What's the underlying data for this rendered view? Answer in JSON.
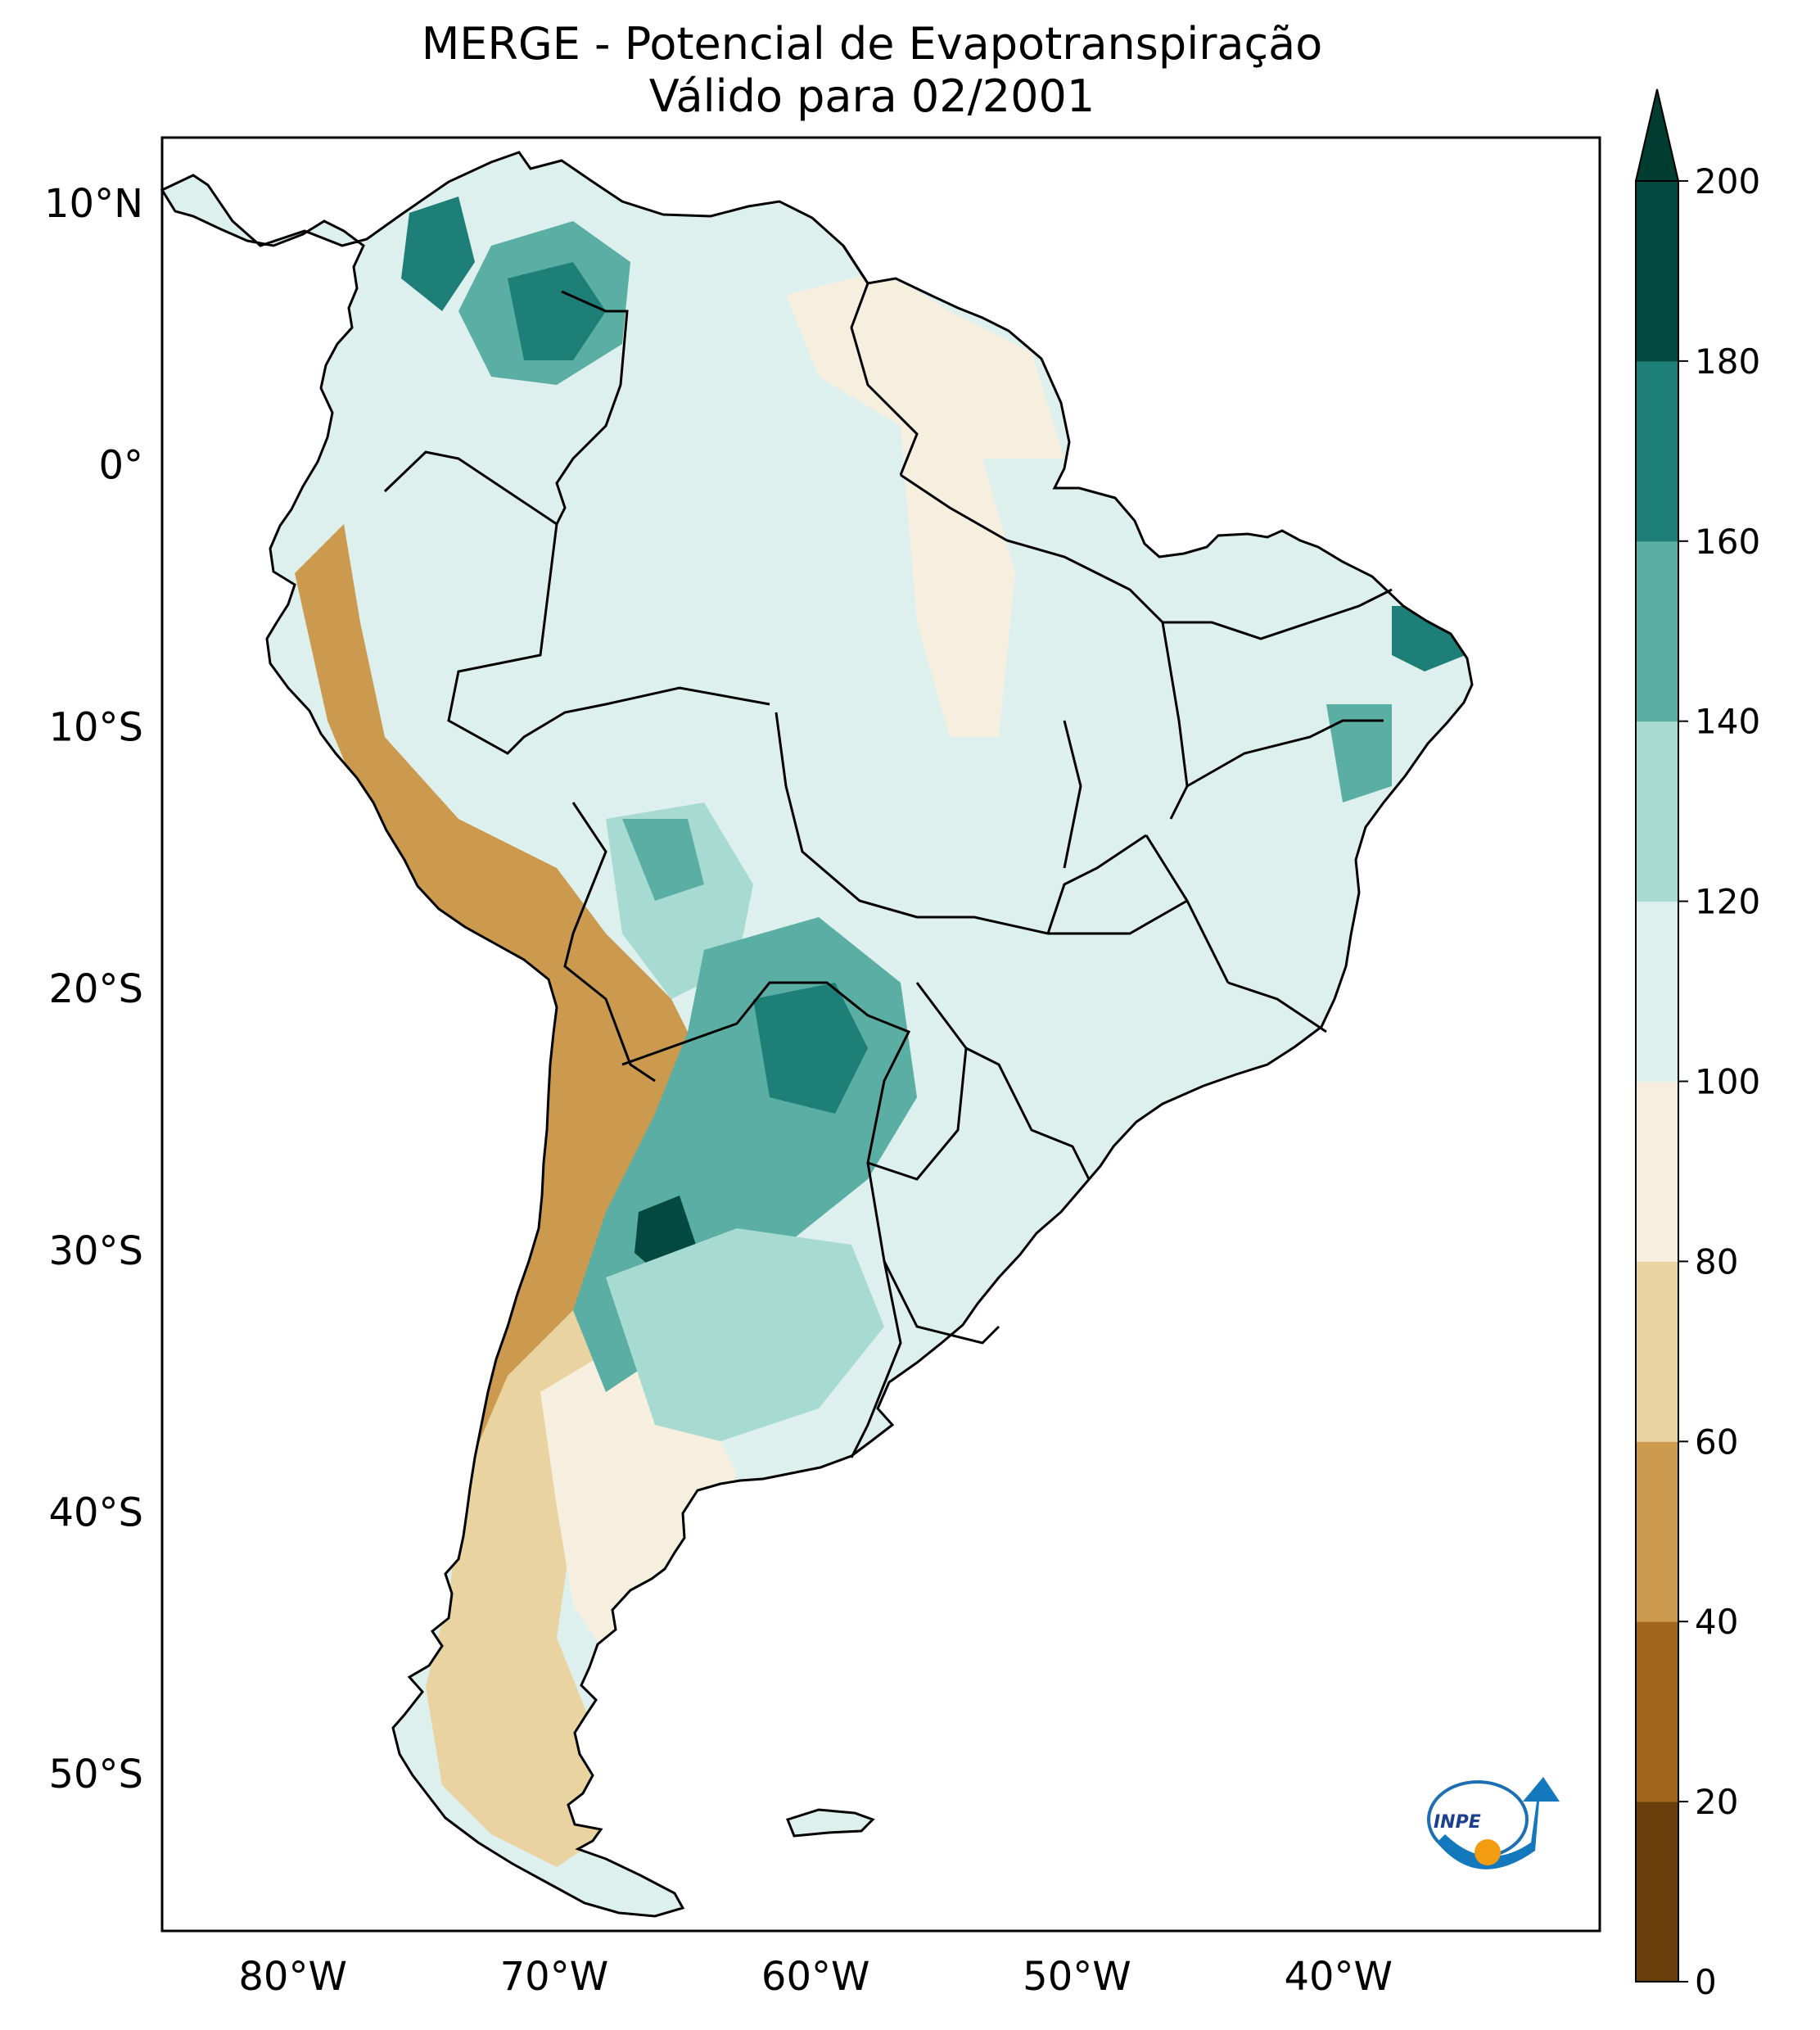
{
  "title": {
    "line1": "MERGE - Potencial de Evapotranspiração",
    "line2": "Válido para 02/2001"
  },
  "map": {
    "lat_labels": [
      {
        "value": 10,
        "label": "10°N"
      },
      {
        "value": 0,
        "label": "0°"
      },
      {
        "value": -10,
        "label": "10°S"
      },
      {
        "value": -20,
        "label": "20°S"
      },
      {
        "value": -30,
        "label": "30°S"
      },
      {
        "value": -40,
        "label": "40°S"
      },
      {
        "value": -50,
        "label": "50°S"
      }
    ],
    "lon_labels": [
      {
        "value": -80,
        "label": "80°W"
      },
      {
        "value": -70,
        "label": "70°W"
      },
      {
        "value": -60,
        "label": "60°W"
      },
      {
        "value": -50,
        "label": "50°W"
      },
      {
        "value": -40,
        "label": "40°W"
      }
    ],
    "lat_range": [
      -56,
      12.5
    ],
    "lon_range": [
      -85,
      -30
    ]
  },
  "colorbar": {
    "ticks": [
      "0",
      "20",
      "40",
      "60",
      "80",
      "100",
      "120",
      "140",
      "160",
      "180",
      "200"
    ],
    "range": [
      0,
      200
    ],
    "extend": "max",
    "colors": [
      "#6b3f0c",
      "#a2651c",
      "#cc9a4e",
      "#e9d3a0",
      "#f6efdf",
      "#ddf0ed",
      "#a7dbd2",
      "#5aaea4",
      "#1d7f77",
      "#03493f"
    ],
    "extend_color": "#003d31"
  },
  "logo": {
    "label": "INPE"
  },
  "colors": {
    "ocean": "#ffffff",
    "border": "#000000"
  }
}
